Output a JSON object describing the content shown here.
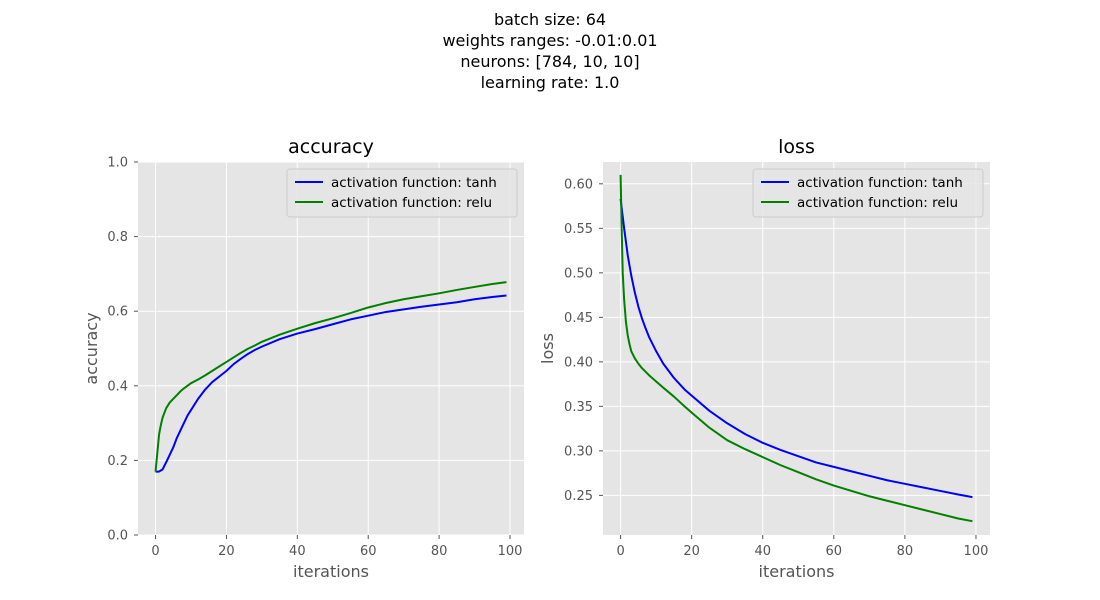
{
  "figure": {
    "suptitle_lines": [
      "batch size: 64",
      "weights ranges: -0.01:0.01",
      "neurons: [784, 10, 10]",
      "learning rate: 1.0"
    ]
  },
  "chart_data": [
    {
      "type": "line",
      "title": "accuracy",
      "xlabel": "iterations",
      "ylabel": "accuracy",
      "xlim": [
        -4.95,
        103.95
      ],
      "ylim": [
        0.0,
        1.0
      ],
      "xticks": [
        0,
        20,
        40,
        60,
        80,
        100
      ],
      "yticks": [
        0.0,
        0.2,
        0.4,
        0.6,
        0.8,
        1.0
      ],
      "ytick_labels": [
        "0.0",
        "0.2",
        "0.4",
        "0.6",
        "0.8",
        "1.0"
      ],
      "grid": true,
      "legend_position": "top-right",
      "series": [
        {
          "name": "activation function: tanh",
          "color": "#0000ff",
          "x": [
            0,
            1,
            2,
            3,
            4,
            5,
            6,
            7,
            8,
            9,
            10,
            12,
            14,
            16,
            18,
            20,
            22,
            24,
            26,
            28,
            30,
            35,
            40,
            45,
            50,
            55,
            60,
            65,
            70,
            75,
            80,
            85,
            90,
            95,
            99
          ],
          "y": [
            0.17,
            0.17,
            0.176,
            0.195,
            0.215,
            0.235,
            0.26,
            0.28,
            0.3,
            0.32,
            0.335,
            0.365,
            0.39,
            0.41,
            0.425,
            0.44,
            0.458,
            0.472,
            0.485,
            0.496,
            0.505,
            0.525,
            0.54,
            0.552,
            0.565,
            0.578,
            0.588,
            0.598,
            0.605,
            0.612,
            0.618,
            0.624,
            0.632,
            0.638,
            0.642
          ]
        },
        {
          "name": "activation function: relu",
          "color": "#008000",
          "x": [
            0,
            0.5,
            1,
            1.5,
            2,
            3,
            4,
            5,
            6,
            7,
            8,
            10,
            12,
            14,
            16,
            18,
            20,
            22,
            24,
            26,
            28,
            30,
            35,
            40,
            45,
            50,
            55,
            60,
            65,
            70,
            75,
            80,
            85,
            90,
            95,
            99
          ],
          "y": [
            0.17,
            0.22,
            0.27,
            0.295,
            0.315,
            0.34,
            0.355,
            0.365,
            0.375,
            0.385,
            0.393,
            0.407,
            0.417,
            0.428,
            0.44,
            0.452,
            0.464,
            0.476,
            0.488,
            0.499,
            0.508,
            0.518,
            0.537,
            0.553,
            0.568,
            0.581,
            0.595,
            0.61,
            0.622,
            0.632,
            0.64,
            0.648,
            0.657,
            0.665,
            0.673,
            0.678
          ]
        }
      ]
    },
    {
      "type": "line",
      "title": "loss",
      "xlabel": "iterations",
      "ylabel": "loss",
      "xlim": [
        -4.95,
        103.95
      ],
      "ylim": [
        0.2055,
        0.6245
      ],
      "xticks": [
        0,
        20,
        40,
        60,
        80,
        100
      ],
      "yticks": [
        0.25,
        0.3,
        0.35,
        0.4,
        0.45,
        0.5,
        0.55,
        0.6
      ],
      "ytick_labels": [
        "0.25",
        "0.30",
        "0.35",
        "0.40",
        "0.45",
        "0.50",
        "0.55",
        "0.60"
      ],
      "grid": true,
      "legend_position": "top-right",
      "series": [
        {
          "name": "activation function: tanh",
          "color": "#0000ff",
          "x": [
            0,
            1,
            2,
            3,
            4,
            5,
            6,
            7,
            8,
            10,
            12,
            15,
            18,
            20,
            25,
            30,
            35,
            40,
            45,
            50,
            55,
            60,
            65,
            70,
            75,
            80,
            85,
            90,
            95,
            99
          ],
          "y": [
            0.583,
            0.55,
            0.52,
            0.497,
            0.478,
            0.462,
            0.449,
            0.438,
            0.428,
            0.412,
            0.398,
            0.382,
            0.369,
            0.362,
            0.345,
            0.331,
            0.319,
            0.309,
            0.301,
            0.294,
            0.287,
            0.282,
            0.277,
            0.272,
            0.267,
            0.263,
            0.259,
            0.255,
            0.251,
            0.248
          ]
        },
        {
          "name": "activation function: relu",
          "color": "#008000",
          "x": [
            0,
            0.3,
            0.6,
            1,
            1.5,
            2,
            2.5,
            3,
            4,
            5,
            6,
            8,
            10,
            12,
            15,
            18,
            20,
            25,
            30,
            35,
            40,
            45,
            50,
            55,
            60,
            65,
            70,
            75,
            80,
            85,
            90,
            95,
            99
          ],
          "y": [
            0.61,
            0.55,
            0.5,
            0.47,
            0.445,
            0.43,
            0.42,
            0.412,
            0.404,
            0.398,
            0.393,
            0.385,
            0.378,
            0.371,
            0.361,
            0.35,
            0.343,
            0.326,
            0.312,
            0.302,
            0.293,
            0.284,
            0.276,
            0.268,
            0.261,
            0.255,
            0.249,
            0.244,
            0.239,
            0.234,
            0.229,
            0.224,
            0.221
          ]
        }
      ]
    }
  ]
}
